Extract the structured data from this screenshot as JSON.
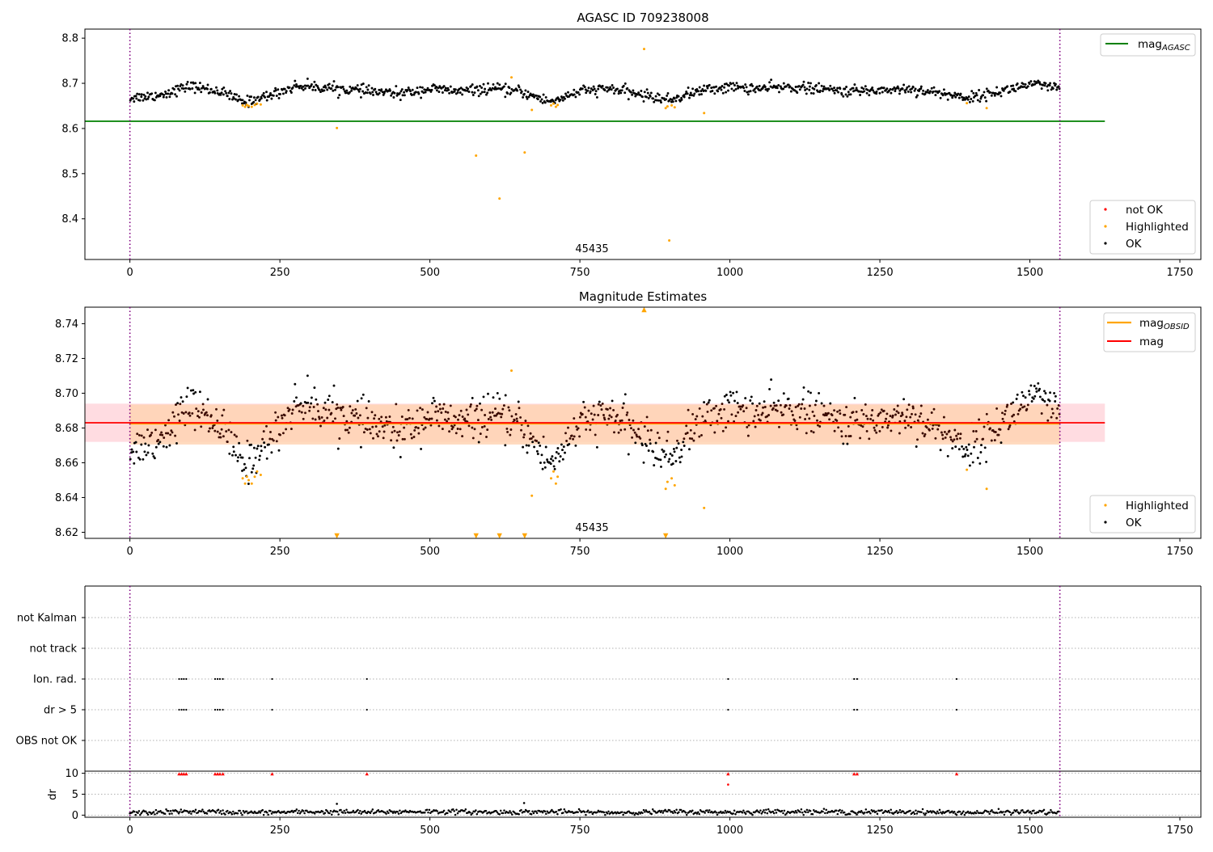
{
  "figure": {
    "panel1_title": "AGASC ID 709238008",
    "panel2_title": "Magnitude Estimates",
    "obsid_label": "45435",
    "colors": {
      "ok": "#000000",
      "highlighted": "#ffa500",
      "not_ok": "#ff0000",
      "agasc_line": "#008000",
      "obsid_line": "#ffa500",
      "mag_line": "#ff0000",
      "obsid_band": "#ffd3b3",
      "mag_band": "#ffd6dc",
      "boundary": "#800080"
    }
  },
  "legends": {
    "lines1": [
      "mag_AGASC"
    ],
    "points1": [
      "not OK",
      "Highlighted",
      "OK"
    ],
    "lines2": [
      "mag_OBSID",
      "mag"
    ],
    "points2": [
      "Highlighted",
      "OK"
    ]
  },
  "chart_data": [
    {
      "type": "scatter",
      "title": "AGASC ID 709238008",
      "xlim": [
        -75,
        1785
      ],
      "ylim": [
        8.31,
        8.82
      ],
      "xticks": [
        "0",
        "250",
        "500",
        "750",
        "1000",
        "1250",
        "1500",
        "1750"
      ],
      "yticks": [
        "8.4",
        "8.5",
        "8.6",
        "8.7",
        "8.8"
      ],
      "grid": false,
      "legend_lines": [
        "mag_AGASC"
      ],
      "legend_points": [
        "not OK",
        "Highlighted",
        "OK"
      ],
      "mag_agasc": 8.616,
      "mag_agasc_x_range": [
        -75,
        1625
      ],
      "obsid_boundaries": [
        0,
        1550
      ],
      "obsid": "45435",
      "ok_trend": [
        [
          0,
          8.668
        ],
        [
          50,
          8.674
        ],
        [
          100,
          8.694
        ],
        [
          150,
          8.682
        ],
        [
          190,
          8.658
        ],
        [
          230,
          8.672
        ],
        [
          280,
          8.695
        ],
        [
          350,
          8.688
        ],
        [
          400,
          8.682
        ],
        [
          450,
          8.677
        ],
        [
          500,
          8.688
        ],
        [
          550,
          8.682
        ],
        [
          600,
          8.688
        ],
        [
          650,
          8.682
        ],
        [
          700,
          8.659
        ],
        [
          750,
          8.682
        ],
        [
          800,
          8.688
        ],
        [
          900,
          8.663
        ],
        [
          950,
          8.684
        ],
        [
          1000,
          8.692
        ],
        [
          1050,
          8.688
        ],
        [
          1100,
          8.692
        ],
        [
          1200,
          8.682
        ],
        [
          1300,
          8.688
        ],
        [
          1400,
          8.668
        ],
        [
          1450,
          8.682
        ],
        [
          1500,
          8.698
        ],
        [
          1550,
          8.688
        ]
      ],
      "highlighted": [
        [
          188,
          8.651
        ],
        [
          192,
          8.648
        ],
        [
          195,
          8.652
        ],
        [
          198,
          8.65
        ],
        [
          203,
          8.648
        ],
        [
          208,
          8.652
        ],
        [
          212,
          8.655
        ],
        [
          218,
          8.653
        ],
        [
          345,
          8.601
        ],
        [
          577,
          8.54
        ],
        [
          616,
          8.445
        ],
        [
          636,
          8.713
        ],
        [
          658,
          8.547
        ],
        [
          670,
          8.641
        ],
        [
          702,
          8.651
        ],
        [
          706,
          8.655
        ],
        [
          710,
          8.648
        ],
        [
          713,
          8.652
        ],
        [
          857,
          8.776
        ],
        [
          893,
          8.645
        ],
        [
          896,
          8.649
        ],
        [
          899,
          8.352
        ],
        [
          903,
          8.651
        ],
        [
          908,
          8.647
        ],
        [
          957,
          8.634
        ],
        [
          1395,
          8.656
        ],
        [
          1428,
          8.645
        ]
      ]
    },
    {
      "type": "scatter",
      "title": "Magnitude Estimates",
      "xlim": [
        -75,
        1785
      ],
      "ylim": [
        8.6165,
        8.7495
      ],
      "xticks": [
        "0",
        "250",
        "500",
        "750",
        "1000",
        "1250",
        "1500",
        "1750"
      ],
      "yticks": [
        "8.62",
        "8.64",
        "8.66",
        "8.68",
        "8.70",
        "8.72",
        "8.74"
      ],
      "grid": false,
      "legend_lines": [
        "mag_OBSID",
        "mag"
      ],
      "legend_points": [
        "Highlighted",
        "OK"
      ],
      "mag": 8.683,
      "mag_band": [
        8.672,
        8.694
      ],
      "mag_x_range": [
        -75,
        1625
      ],
      "mag_obsid": 8.6825,
      "mag_obsid_band": [
        8.6705,
        8.6935
      ],
      "mag_obsid_x_range": [
        0,
        1550
      ],
      "obsid_boundaries": [
        0,
        1550
      ],
      "obsid": "45435",
      "ok_trend": [
        [
          0,
          8.668
        ],
        [
          50,
          8.674
        ],
        [
          100,
          8.694
        ],
        [
          150,
          8.682
        ],
        [
          190,
          8.658
        ],
        [
          230,
          8.672
        ],
        [
          280,
          8.695
        ],
        [
          350,
          8.688
        ],
        [
          400,
          8.682
        ],
        [
          450,
          8.677
        ],
        [
          500,
          8.688
        ],
        [
          550,
          8.682
        ],
        [
          600,
          8.688
        ],
        [
          650,
          8.682
        ],
        [
          700,
          8.659
        ],
        [
          750,
          8.682
        ],
        [
          800,
          8.688
        ],
        [
          900,
          8.663
        ],
        [
          950,
          8.684
        ],
        [
          1000,
          8.692
        ],
        [
          1050,
          8.688
        ],
        [
          1100,
          8.692
        ],
        [
          1200,
          8.682
        ],
        [
          1300,
          8.688
        ],
        [
          1400,
          8.668
        ],
        [
          1450,
          8.682
        ],
        [
          1500,
          8.698
        ],
        [
          1550,
          8.688
        ]
      ],
      "highlighted": [
        [
          188,
          8.651
        ],
        [
          192,
          8.648
        ],
        [
          195,
          8.652
        ],
        [
          198,
          8.65
        ],
        [
          203,
          8.648
        ],
        [
          208,
          8.652
        ],
        [
          212,
          8.655
        ],
        [
          218,
          8.653
        ],
        [
          636,
          8.713
        ],
        [
          670,
          8.641
        ],
        [
          702,
          8.651
        ],
        [
          706,
          8.655
        ],
        [
          710,
          8.648
        ],
        [
          713,
          8.652
        ],
        [
          893,
          8.645
        ],
        [
          896,
          8.649
        ],
        [
          903,
          8.651
        ],
        [
          908,
          8.647
        ],
        [
          957,
          8.634
        ],
        [
          1395,
          8.656
        ],
        [
          1428,
          8.645
        ]
      ],
      "clipped_low_markers": [
        345,
        577,
        616,
        658,
        893
      ],
      "clipped_high_markers": [
        857
      ]
    },
    {
      "type": "scatter",
      "title": "",
      "xlim": [
        -75,
        1785
      ],
      "xticks": [
        "0",
        "250",
        "500",
        "750",
        "1000",
        "1250",
        "1500",
        "1750"
      ],
      "flag_labels": [
        "not Kalman",
        "not track",
        "Ion. rad.",
        "dr > 5",
        "OBS not OK"
      ],
      "flag_points": {
        "Ion. rad.": [
          82,
          86,
          90,
          94,
          142,
          146,
          150,
          155,
          237,
          395,
          997,
          1207,
          1212,
          1378
        ],
        "dr > 5": [
          82,
          86,
          90,
          94,
          142,
          146,
          150,
          155,
          237,
          395,
          997,
          1207,
          1212,
          1378
        ]
      },
      "obsid_boundaries": [
        0,
        1550
      ]
    },
    {
      "type": "scatter",
      "title": "",
      "ylabel": "dr",
      "xlim": [
        -75,
        1785
      ],
      "ylim": [
        -0.5,
        10.5
      ],
      "xticks": [
        "0",
        "250",
        "500",
        "750",
        "1000",
        "1250",
        "1500",
        "1750"
      ],
      "yticks": [
        "0",
        "5",
        "10"
      ],
      "dr_trend": [
        [
          0,
          0.5
        ],
        [
          100,
          0.9
        ],
        [
          200,
          0.6
        ],
        [
          300,
          0.8
        ],
        [
          400,
          0.7
        ],
        [
          500,
          0.9
        ],
        [
          600,
          0.7
        ],
        [
          700,
          0.8
        ],
        [
          800,
          0.6
        ],
        [
          900,
          0.8
        ],
        [
          1000,
          0.7
        ],
        [
          1100,
          0.9
        ],
        [
          1200,
          0.7
        ],
        [
          1300,
          0.8
        ],
        [
          1400,
          0.6
        ],
        [
          1500,
          0.8
        ],
        [
          1550,
          0.6
        ]
      ],
      "dr_outliers": [
        [
          345,
          2.7
        ],
        [
          657,
          2.9
        ],
        [
          997,
          7.3
        ]
      ],
      "dr_clipped": [
        82,
        86,
        90,
        94,
        142,
        146,
        150,
        155,
        237,
        395,
        997,
        1207,
        1212,
        1378
      ],
      "obsid_boundaries": [
        0,
        1550
      ]
    }
  ]
}
